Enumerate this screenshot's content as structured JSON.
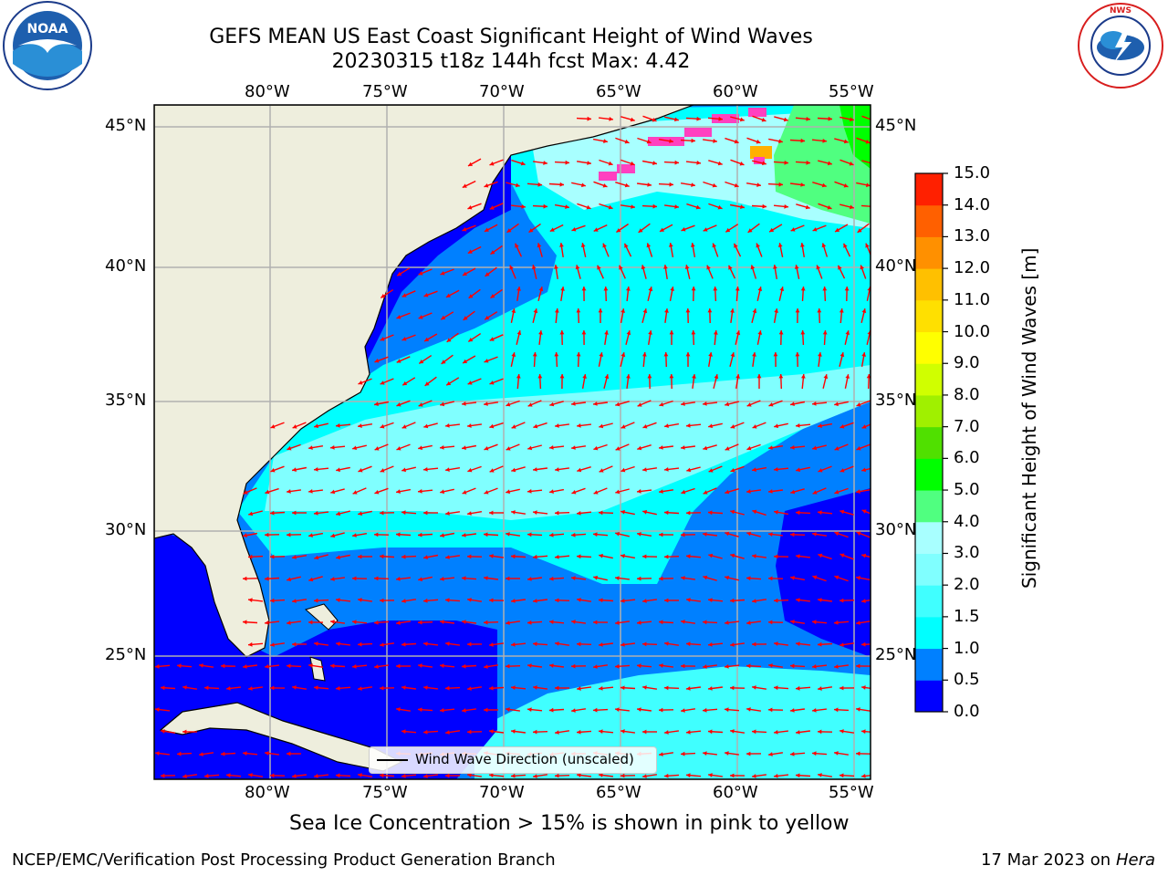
{
  "title": {
    "line1": "GEFS MEAN US East Coast Significant Height of Wind Waves",
    "line2": "20230315 t18z 144h fcst   Max: 4.42"
  },
  "axes": {
    "lon_labels": [
      "80°W",
      "75°W",
      "70°W",
      "65°W",
      "60°W",
      "55°W"
    ],
    "lat_labels": [
      "45°N",
      "40°N",
      "35°N",
      "30°N",
      "25°N"
    ]
  },
  "colorbar": {
    "label": "Significant Height of Wind Waves [m]",
    "ticks": [
      "15.0",
      "14.0",
      "13.0",
      "12.0",
      "11.0",
      "10.0",
      "9.0",
      "8.0",
      "7.0",
      "6.0",
      "5.0",
      "4.0",
      "3.0",
      "2.0",
      "1.5",
      "1.0",
      "0.5",
      "0.0"
    ],
    "colors": [
      "#0000ff",
      "#0080ff",
      "#00ffff",
      "#40ffff",
      "#80ffff",
      "#a8ffff",
      "#50ff80",
      "#00ff00",
      "#50e000",
      "#a0f000",
      "#d0ff00",
      "#ffff00",
      "#ffe000",
      "#ffc000",
      "#ff9000",
      "#ff6000",
      "#ff2000"
    ]
  },
  "legend": {
    "label": "Wind Wave Direction (unscaled)"
  },
  "notes": {
    "sea_ice": "Sea Ice Concentration > 15% is shown in pink to yellow"
  },
  "footer": {
    "left": "NCEP/EMC/Verification Post Processing Product Generation Branch",
    "right_date": "17 Mar 2023 on",
    "right_host": "Hera"
  },
  "logos": {
    "left": "NOAA",
    "right": "NATIONAL WEATHER SERVICE"
  },
  "colors": {
    "arrow": "#ff0000",
    "land": "#eeeedd",
    "grid": "#b0b0b0"
  }
}
